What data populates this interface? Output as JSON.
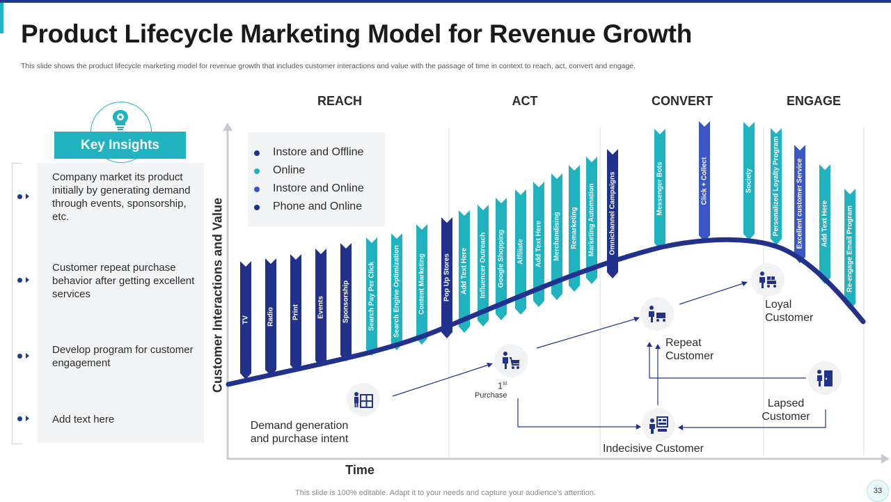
{
  "header": {
    "title": "Product Lifecycle Marketing Model for Revenue Growth",
    "subtitle": "This slide shows the product lifecycle marketing model for revenue growth that includes customer interactions and value with the passage of time in context to reach, act, convert and engage."
  },
  "footer": {
    "note": "This slide is 100% editable. Adapt it to your needs and capture your audience's attention.",
    "page_number": "33"
  },
  "insights": {
    "heading": "Key Insights",
    "items": [
      "Company market its product initially by generating demand through events, sponsorship, etc.",
      "Customer repeat purchase behavior after getting excellent services",
      "Develop program for customer engagement",
      "Add text here"
    ]
  },
  "legend": {
    "items": [
      {
        "label": "Instore and Offline",
        "color": "#22318c"
      },
      {
        "label": "Online",
        "color": "#20b2bf"
      },
      {
        "label": "Instore and Online",
        "color": "#3a56c4"
      },
      {
        "label": "Phone and Online",
        "color": "#22318c"
      }
    ]
  },
  "phases": [
    "REACH",
    "ACT",
    "CONVERT",
    "ENGAGE"
  ],
  "axes": {
    "y_label": "Customer Interactions and Value",
    "x_label": "Time"
  },
  "channels": [
    {
      "label": "TV",
      "type": "instore_offline"
    },
    {
      "label": "Radio",
      "type": "instore_offline"
    },
    {
      "label": "Print",
      "type": "instore_offline"
    },
    {
      "label": "Events",
      "type": "instore_offline"
    },
    {
      "label": "Sponsorship",
      "type": "instore_offline"
    },
    {
      "label": "Search Pay Per Click",
      "type": "online"
    },
    {
      "label": "Search Engine Optimization",
      "type": "online"
    },
    {
      "label": "Content Marketing",
      "type": "online"
    },
    {
      "label": "Pop Up Stores",
      "type": "instore_offline"
    },
    {
      "label": "Add Text Here",
      "type": "online"
    },
    {
      "label": "Influencer Outreach",
      "type": "online"
    },
    {
      "label": "Google Shopping",
      "type": "online"
    },
    {
      "label": "Affiliate",
      "type": "online"
    },
    {
      "label": "Add Text Here",
      "type": "online"
    },
    {
      "label": "Merchandising",
      "type": "online"
    },
    {
      "label": "Remarketing",
      "type": "online"
    },
    {
      "label": "Marketing Automation",
      "type": "online"
    },
    {
      "label": "Omnichannel Campaigns",
      "type": "instore_offline"
    },
    {
      "label": "Messenger Bots",
      "type": "online"
    },
    {
      "label": "Click + Collect",
      "type": "instore_online"
    },
    {
      "label": "Society",
      "type": "online"
    },
    {
      "label": "Personalized Loyalty Program",
      "type": "online"
    },
    {
      "label": "Excellent customer Service",
      "type": "instore_online"
    },
    {
      "label": "Add Text Here",
      "type": "online"
    },
    {
      "label": "Re-engage Email Program",
      "type": "online"
    }
  ],
  "journey": {
    "demand": "Demand generation\nand purchase intent",
    "first_purchase_num": "1",
    "first_purchase_sup": "st",
    "first_purchase_label": "Purchase",
    "repeat": "Repeat\nCustomer",
    "loyal": "Loyal\nCustomer",
    "lapsed": "Lapsed\nCustomer",
    "indecisive": "Indecisive Customer"
  }
}
